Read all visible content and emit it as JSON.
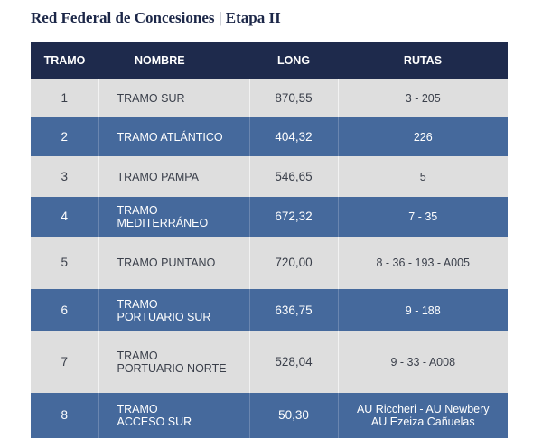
{
  "title": "Red Federal de Concesiones | Etapa II",
  "table": {
    "headers": [
      "TRAMO",
      "NOMBRE",
      "LONG",
      "RUTAS"
    ],
    "rows": [
      {
        "tramo": "1",
        "nombre": "TRAMO SUR",
        "long": "870,55",
        "rutas": "3 - 205"
      },
      {
        "tramo": "2",
        "nombre": "TRAMO ATLÁNTICO",
        "long": "404,32",
        "rutas": "226"
      },
      {
        "tramo": "3",
        "nombre": "TRAMO PAMPA",
        "long": "546,65",
        "rutas": "5"
      },
      {
        "tramo": "4",
        "nombre": "TRAMO\nMEDITERRÁNEO",
        "long": "672,32",
        "rutas": "7 - 35"
      },
      {
        "tramo": "5",
        "nombre": "TRAMO PUNTANO",
        "long": "720,00",
        "rutas": "8 - 36 - 193 - A005"
      },
      {
        "tramo": "6",
        "nombre": "TRAMO\nPORTUARIO SUR",
        "long": "636,75",
        "rutas": "9 - 188"
      },
      {
        "tramo": "7",
        "nombre": "TRAMO\nPORTUARIO NORTE",
        "long": "528,04",
        "rutas": "9 - 33 - A008"
      },
      {
        "tramo": "8",
        "nombre": "TRAMO\nACCESO SUR",
        "long": "50,30",
        "rutas": "AU Riccheri - AU Newbery\nAU Ezeiza Cañuelas"
      }
    ]
  },
  "colors": {
    "header_bg": "#1e2a4c",
    "row_light": "#dedede",
    "row_dark": "#45699c",
    "title": "#1c2748"
  }
}
